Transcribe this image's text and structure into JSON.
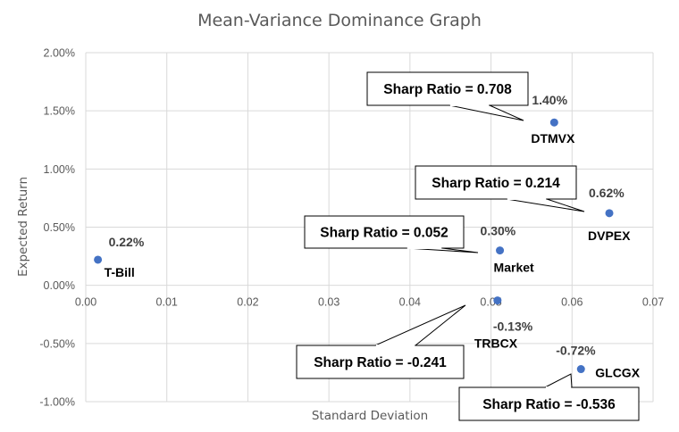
{
  "chart_data": {
    "type": "scatter",
    "title": "Mean-Variance Dominance Graph",
    "xlabel": "Standard Deviation",
    "ylabel": "Expected Return",
    "xlim": [
      0,
      0.07
    ],
    "ylim": [
      -0.01,
      0.02
    ],
    "x_ticks": [
      0,
      0.01,
      0.02,
      0.03,
      0.04,
      0.05,
      0.06,
      0.07
    ],
    "x_tick_labels": [
      "0.00",
      "0.01",
      "0.02",
      "0.03",
      "0.04",
      "0.05",
      "0.06",
      "0.07"
    ],
    "y_ticks": [
      -0.01,
      -0.005,
      0,
      0.005,
      0.01,
      0.015,
      0.02
    ],
    "y_tick_labels": [
      "-1.00%",
      "-0.50%",
      "0.00%",
      "0.50%",
      "1.00%",
      "1.50%",
      "2.00%"
    ],
    "grid": true,
    "marker_color": "#4472c4",
    "points": [
      {
        "name": "T-Bill",
        "x": 0.0015,
        "y": 0.0022,
        "value_label": "0.22%"
      },
      {
        "name": "Market",
        "x": 0.0511,
        "y": 0.003,
        "value_label": "0.30%",
        "callout": "Sharp Ratio = 0.052"
      },
      {
        "name": "TRBCX",
        "x": 0.0508,
        "y": -0.0013,
        "value_label": "-0.13%",
        "callout": "Sharp Ratio = -0.241"
      },
      {
        "name": "DTMVX",
        "x": 0.0578,
        "y": 0.014,
        "value_label": "1.40%",
        "callout": "Sharp Ratio = 0.708"
      },
      {
        "name": "DVPEX",
        "x": 0.0646,
        "y": 0.0062,
        "value_label": "0.62%",
        "callout": "Sharp Ratio = 0.214"
      },
      {
        "name": "GLCGX",
        "x": 0.0611,
        "y": -0.0072,
        "value_label": "-0.72%",
        "callout": "Sharp Ratio = -0.536"
      }
    ]
  }
}
